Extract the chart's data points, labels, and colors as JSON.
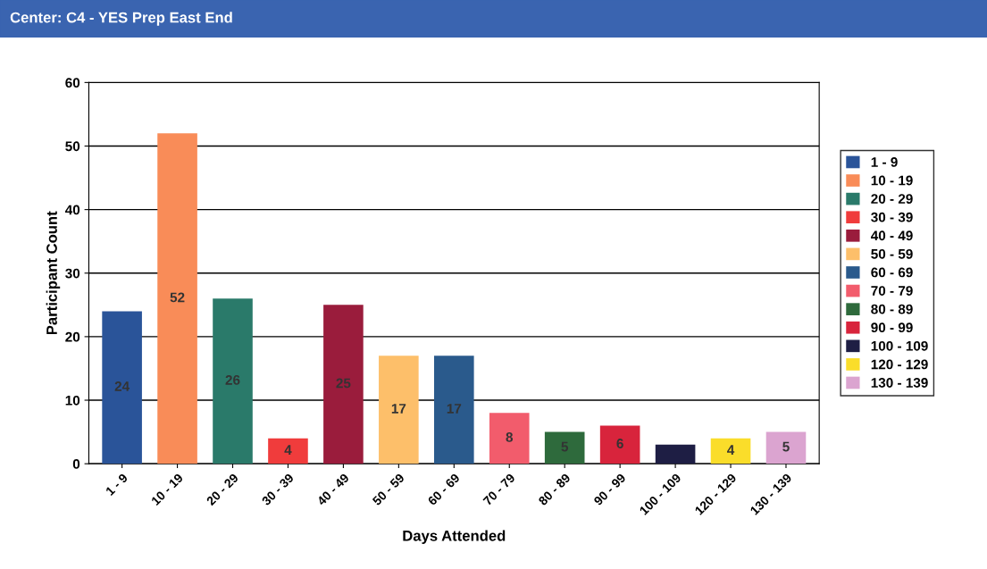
{
  "chart_data": {
    "type": "bar",
    "title": "Center: C4 - YES Prep East End",
    "xlabel": "Days Attended",
    "ylabel": "Participant Count",
    "categories": [
      "1 - 9",
      "10 - 19",
      "20 - 29",
      "30 - 39",
      "40 - 49",
      "50 - 59",
      "60 - 69",
      "70 - 79",
      "80 - 89",
      "90 - 99",
      "100 - 109",
      "120 - 129",
      "130 - 139"
    ],
    "series": [
      {
        "name": "1 - 9",
        "color": "#2a5499",
        "values": [
          24,
          null,
          null,
          null,
          null,
          null,
          null,
          null,
          null,
          null,
          null,
          null,
          null
        ],
        "value_labels": [
          "24",
          null,
          null,
          null,
          null,
          null,
          null,
          null,
          null,
          null,
          null,
          null,
          null
        ]
      },
      {
        "name": "10 - 19",
        "color": "#f98c58",
        "values": [
          null,
          52,
          null,
          null,
          null,
          null,
          null,
          null,
          null,
          null,
          null,
          null,
          null
        ],
        "value_labels": [
          null,
          "52",
          null,
          null,
          null,
          null,
          null,
          null,
          null,
          null,
          null,
          null,
          null
        ]
      },
      {
        "name": "20 - 29",
        "color": "#2a7a6a",
        "values": [
          null,
          null,
          26,
          null,
          null,
          null,
          null,
          null,
          null,
          null,
          null,
          null,
          null
        ],
        "value_labels": [
          null,
          null,
          "26",
          null,
          null,
          null,
          null,
          null,
          null,
          null,
          null,
          null,
          null
        ]
      },
      {
        "name": "30 - 39",
        "color": "#f03c3c",
        "values": [
          null,
          null,
          null,
          4,
          null,
          null,
          null,
          null,
          null,
          null,
          null,
          null,
          null
        ],
        "value_labels": [
          null,
          null,
          null,
          "4",
          null,
          null,
          null,
          null,
          null,
          null,
          null,
          null,
          null
        ]
      },
      {
        "name": "40 - 49",
        "color": "#9a1c3c",
        "values": [
          null,
          null,
          null,
          null,
          25,
          null,
          null,
          null,
          null,
          null,
          null,
          null,
          null
        ],
        "value_labels": [
          null,
          null,
          null,
          null,
          "25",
          null,
          null,
          null,
          null,
          null,
          null,
          null,
          null
        ]
      },
      {
        "name": "50 - 59",
        "color": "#fdbf6a",
        "values": [
          null,
          null,
          null,
          null,
          null,
          17,
          null,
          null,
          null,
          null,
          null,
          null,
          null
        ],
        "value_labels": [
          null,
          null,
          null,
          null,
          null,
          "17",
          null,
          null,
          null,
          null,
          null,
          null,
          null
        ]
      },
      {
        "name": "60 - 69",
        "color": "#2a5a8c",
        "values": [
          null,
          null,
          null,
          null,
          null,
          null,
          17,
          null,
          null,
          null,
          null,
          null,
          null
        ],
        "value_labels": [
          null,
          null,
          null,
          null,
          null,
          null,
          "17",
          null,
          null,
          null,
          null,
          null,
          null
        ]
      },
      {
        "name": "70 - 79",
        "color": "#f25c6c",
        "values": [
          null,
          null,
          null,
          null,
          null,
          null,
          null,
          8,
          null,
          null,
          null,
          null,
          null
        ],
        "value_labels": [
          null,
          null,
          null,
          null,
          null,
          null,
          null,
          "8",
          null,
          null,
          null,
          null,
          null
        ]
      },
      {
        "name": "80 - 89",
        "color": "#2e6a3c",
        "values": [
          null,
          null,
          null,
          null,
          null,
          null,
          null,
          null,
          5,
          null,
          null,
          null,
          null
        ],
        "value_labels": [
          null,
          null,
          null,
          null,
          null,
          null,
          null,
          null,
          "5",
          null,
          null,
          null,
          null
        ]
      },
      {
        "name": "90 - 99",
        "color": "#d8243c",
        "values": [
          null,
          null,
          null,
          null,
          null,
          null,
          null,
          null,
          null,
          6,
          null,
          null,
          null
        ],
        "value_labels": [
          null,
          null,
          null,
          null,
          null,
          null,
          null,
          null,
          null,
          "6",
          null,
          null,
          null
        ]
      },
      {
        "name": "100 - 109",
        "color": "#1e1e44",
        "values": [
          null,
          null,
          null,
          null,
          null,
          null,
          null,
          null,
          null,
          null,
          3,
          null,
          null
        ]
      },
      {
        "name": "120 - 129",
        "color": "#fadd2a",
        "values": [
          null,
          null,
          null,
          null,
          null,
          null,
          null,
          null,
          null,
          null,
          null,
          4,
          null
        ],
        "value_labels": [
          null,
          null,
          null,
          null,
          null,
          null,
          null,
          null,
          null,
          null,
          null,
          "4",
          null
        ]
      },
      {
        "name": "130 - 139",
        "color": "#dba4d0",
        "values": [
          null,
          null,
          null,
          null,
          null,
          null,
          null,
          null,
          null,
          null,
          null,
          null,
          5
        ],
        "value_labels": [
          null,
          null,
          null,
          null,
          null,
          null,
          null,
          null,
          null,
          null,
          null,
          null,
          "5"
        ]
      }
    ],
    "ylim": [
      0,
      60
    ],
    "yticks": [
      0,
      10,
      20,
      30,
      40,
      50,
      60
    ],
    "grid": "y",
    "legend": "right"
  }
}
